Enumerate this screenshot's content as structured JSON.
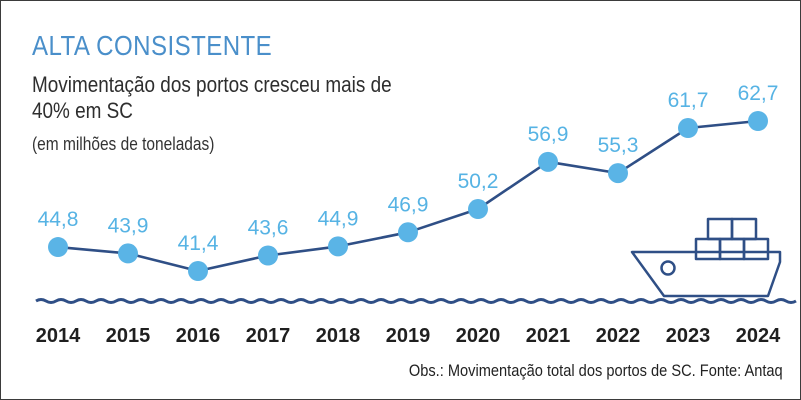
{
  "header": {
    "kicker": "ALTA CONSISTENTE",
    "headline": "Movimentação dos portos cresceu mais de 40% em SC",
    "unit": "(em milhões de toneladas)"
  },
  "footer": {
    "note": "Obs.: Movimentação total dos portos de SC. Fonte: Antaq"
  },
  "colors": {
    "accent": "#56b3e4",
    "line": "#2f4f86",
    "marker": "#5ab4e6",
    "text": "#2e2e2e"
  },
  "chart_data": {
    "type": "line",
    "title": "Movimentação dos portos cresceu mais de 40% em SC",
    "ylabel": "em milhões de toneladas",
    "xlabel": "",
    "categories": [
      "2014",
      "2015",
      "2016",
      "2017",
      "2018",
      "2019",
      "2020",
      "2021",
      "2022",
      "2023",
      "2024"
    ],
    "values": [
      44.8,
      43.9,
      41.4,
      43.6,
      44.9,
      46.9,
      50.2,
      56.9,
      55.3,
      61.7,
      62.7
    ],
    "data_labels": [
      "44,8",
      "43,9",
      "41,4",
      "43,6",
      "44,9",
      "46,9",
      "50,2",
      "56,9",
      "55,3",
      "61,7",
      "62,7"
    ],
    "grid": false,
    "legend": "none"
  }
}
